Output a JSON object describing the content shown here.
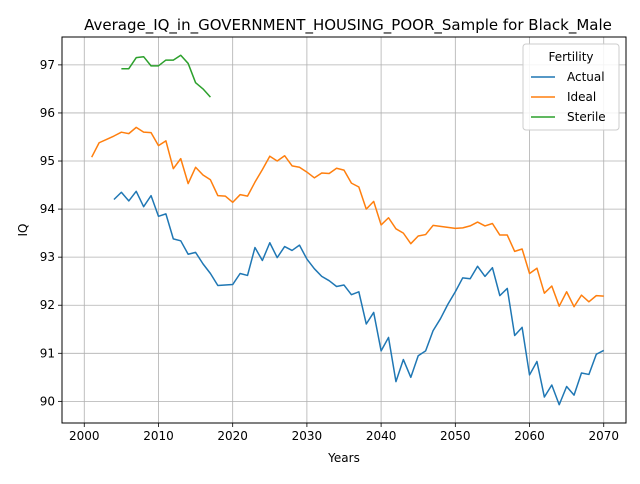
{
  "chart_data": {
    "type": "line",
    "title": "Average_IQ_in_GOVERNMENT_HOUSING_POOR_Sample for Black_Male",
    "xlabel": "Years",
    "ylabel": "IQ",
    "xlim": [
      1997,
      2073
    ],
    "ylim": [
      89.55,
      97.58
    ],
    "xticks": [
      2000,
      2010,
      2020,
      2030,
      2040,
      2050,
      2060,
      2070
    ],
    "yticks": [
      90,
      91,
      92,
      93,
      94,
      95,
      96,
      97
    ],
    "grid": true,
    "legend": {
      "title": "Fertility",
      "placement": "top-right"
    },
    "series": [
      {
        "name": "Actual",
        "color": "#1f77b4",
        "x": [
          2004,
          2005,
          2006,
          2007,
          2008,
          2009,
          2010,
          2011,
          2012,
          2013,
          2014,
          2015,
          2016,
          2017,
          2018,
          2019,
          2020,
          2021,
          2022,
          2023,
          2024,
          2025,
          2026,
          2027,
          2028,
          2029,
          2030,
          2031,
          2032,
          2033,
          2034,
          2035,
          2036,
          2037,
          2038,
          2039,
          2040,
          2041,
          2042,
          2043,
          2044,
          2045,
          2046,
          2047,
          2048,
          2049,
          2050,
          2051,
          2052,
          2053,
          2054,
          2055,
          2056,
          2057,
          2058,
          2059,
          2060,
          2061,
          2062,
          2063,
          2064,
          2065,
          2066,
          2067,
          2068,
          2069,
          2070
        ],
        "values": [
          94.2,
          94.35,
          94.17,
          94.37,
          94.05,
          94.28,
          93.85,
          93.9,
          93.38,
          93.34,
          93.06,
          93.1,
          92.86,
          92.66,
          92.41,
          92.42,
          92.43,
          92.66,
          92.62,
          93.2,
          92.93,
          93.3,
          92.99,
          93.22,
          93.14,
          93.25,
          92.96,
          92.76,
          92.6,
          92.51,
          92.39,
          92.42,
          92.22,
          92.28,
          91.61,
          91.85,
          91.05,
          91.33,
          90.41,
          90.87,
          90.5,
          90.95,
          91.05,
          91.47,
          91.72,
          92.02,
          92.28,
          92.57,
          92.55,
          92.81,
          92.6,
          92.78,
          92.2,
          92.35,
          91.37,
          91.54,
          90.55,
          90.83,
          90.09,
          90.34,
          89.93,
          90.31,
          90.13,
          90.59,
          90.56,
          90.98,
          91.06
        ]
      },
      {
        "name": "Ideal",
        "color": "#ff7f0e",
        "x": [
          2001,
          2002,
          2003,
          2004,
          2005,
          2006,
          2007,
          2008,
          2009,
          2010,
          2011,
          2012,
          2013,
          2014,
          2015,
          2016,
          2017,
          2018,
          2019,
          2020,
          2021,
          2022,
          2023,
          2024,
          2025,
          2026,
          2027,
          2028,
          2029,
          2030,
          2031,
          2032,
          2033,
          2034,
          2035,
          2036,
          2037,
          2038,
          2039,
          2040,
          2041,
          2042,
          2043,
          2044,
          2045,
          2046,
          2047,
          2048,
          2049,
          2050,
          2051,
          2052,
          2053,
          2054,
          2055,
          2056,
          2057,
          2058,
          2059,
          2060,
          2061,
          2062,
          2063,
          2064,
          2065,
          2066,
          2067,
          2068,
          2069,
          2070
        ],
        "values": [
          95.08,
          95.38,
          95.45,
          95.52,
          95.6,
          95.57,
          95.7,
          95.6,
          95.59,
          95.32,
          95.42,
          94.84,
          95.05,
          94.53,
          94.87,
          94.71,
          94.61,
          94.28,
          94.27,
          94.14,
          94.3,
          94.27,
          94.56,
          94.82,
          95.1,
          95.0,
          95.11,
          94.9,
          94.87,
          94.77,
          94.65,
          94.75,
          94.74,
          94.85,
          94.81,
          94.54,
          94.46,
          94.0,
          94.16,
          93.67,
          93.82,
          93.59,
          93.5,
          93.28,
          93.44,
          93.47,
          93.66,
          93.64,
          93.62,
          93.6,
          93.61,
          93.65,
          93.73,
          93.65,
          93.7,
          93.46,
          93.46,
          93.12,
          93.17,
          92.66,
          92.77,
          92.25,
          92.4,
          91.98,
          92.28,
          91.97,
          92.21,
          92.07,
          92.2,
          92.19
        ]
      },
      {
        "name": "Sterile",
        "color": "#2ca02c",
        "x": [
          2005,
          2006,
          2007,
          2008,
          2009,
          2010,
          2011,
          2012,
          2013,
          2014,
          2015,
          2016,
          2017
        ],
        "values": [
          96.92,
          96.92,
          97.15,
          97.17,
          96.98,
          96.98,
          97.1,
          97.1,
          97.2,
          97.03,
          96.63,
          96.5,
          96.33
        ]
      }
    ]
  }
}
